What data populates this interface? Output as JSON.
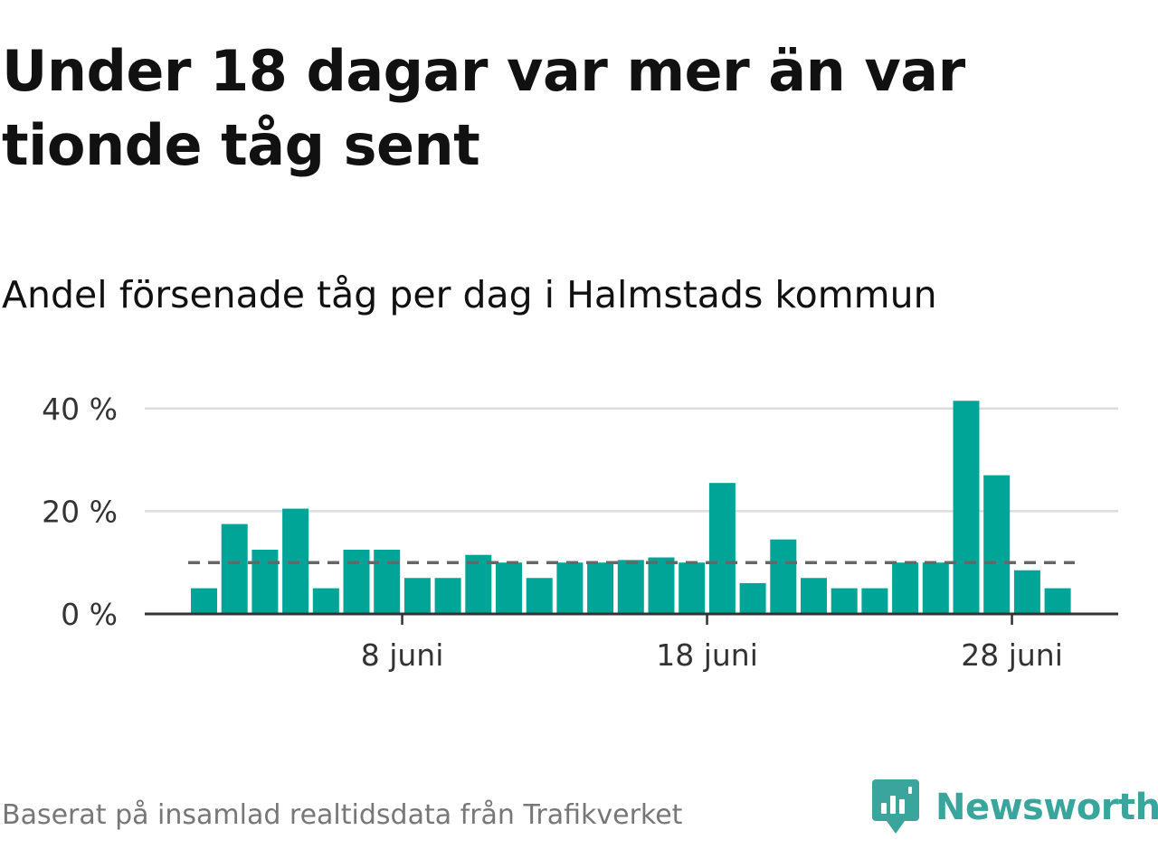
{
  "title": "Under 18 dagar var mer än var tionde tåg sent",
  "subtitle": "Andel försenade tåg per dag i Halmstads kommun",
  "source": "Baserat på insamlad realtidsdata från Trafikverket",
  "brand": {
    "name": "Newsworthy",
    "icon": "newsworthy-logo-icon",
    "color": "#3aa59c"
  },
  "colors": {
    "bar": "#00a598",
    "reference_line": "#666666",
    "grid": "#dddddd",
    "axis": "#333333"
  },
  "chart_data": {
    "type": "bar",
    "title": "Under 18 dagar var mer än var tionde tåg sent",
    "subtitle": "Andel försenade tåg per dag i Halmstads kommun",
    "x": [
      "2025-06-01",
      "2025-06-02",
      "2025-06-03",
      "2025-06-04",
      "2025-06-05",
      "2025-06-06",
      "2025-06-07",
      "2025-06-08",
      "2025-06-09",
      "2025-06-10",
      "2025-06-11",
      "2025-06-12",
      "2025-06-13",
      "2025-06-14",
      "2025-06-15",
      "2025-06-16",
      "2025-06-17",
      "2025-06-18",
      "2025-06-19",
      "2025-06-20",
      "2025-06-21",
      "2025-06-22",
      "2025-06-23",
      "2025-06-24",
      "2025-06-25",
      "2025-06-26",
      "2025-06-27",
      "2025-06-28",
      "2025-06-29"
    ],
    "values": [
      5,
      17.5,
      12.5,
      20.5,
      5,
      12.5,
      12.5,
      7,
      7,
      11.5,
      10,
      7,
      10,
      10,
      10.5,
      11,
      10,
      25.5,
      6,
      14.5,
      7,
      5,
      5,
      10,
      10,
      41.5,
      27,
      8.5,
      5
    ],
    "reference_line": {
      "value": 10,
      "style": "dashed"
    },
    "yticks": [
      0,
      20,
      40
    ],
    "ytick_labels": [
      "0 %",
      "20 %",
      "40 %"
    ],
    "xticks": [
      "2025-06-08",
      "2025-06-18",
      "2025-06-28"
    ],
    "xtick_labels": [
      "8 juni",
      "18 juni",
      "28 juni"
    ],
    "ylim": [
      0,
      45
    ],
    "grid": "horizontal",
    "legend": "none",
    "xlabel": "",
    "ylabel": ""
  }
}
